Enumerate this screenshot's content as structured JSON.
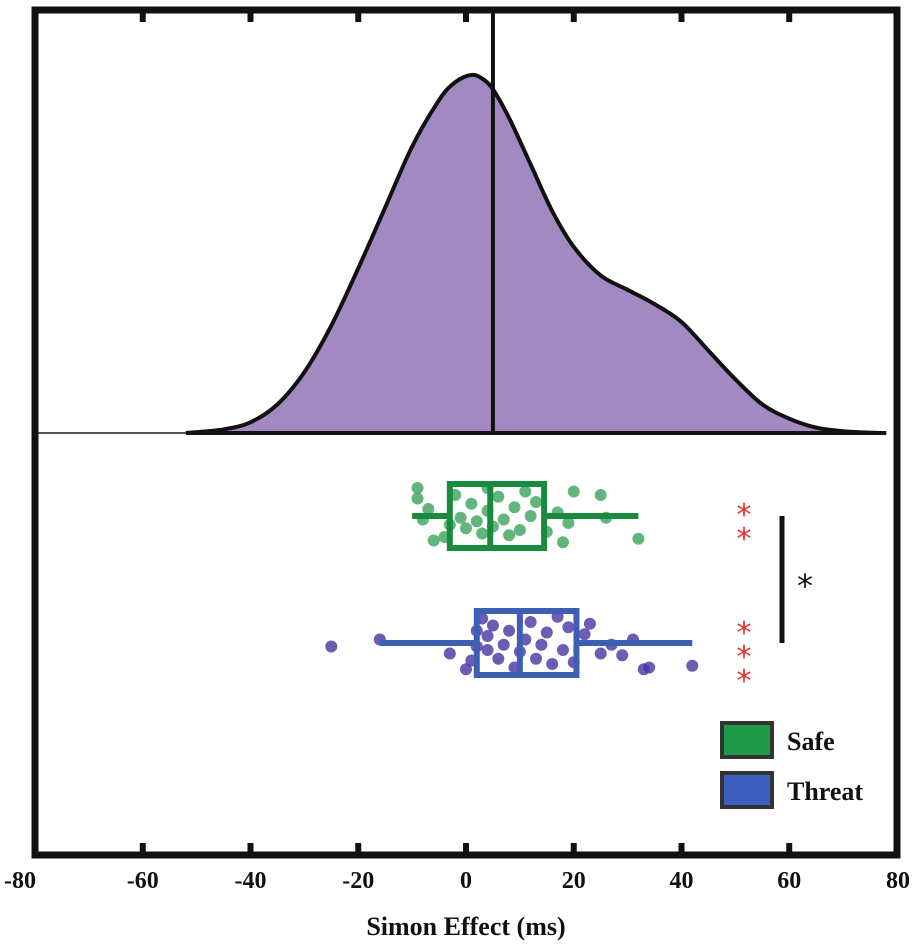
{
  "chart_data": {
    "type": "raincloud",
    "xlabel": "Simon Effect (ms)",
    "xlim": [
      -80,
      80
    ],
    "xticks": [
      -80,
      -60,
      -40,
      -20,
      0,
      20,
      40,
      60,
      80
    ],
    "tick_labels": [
      "-80",
      "-60",
      "-40",
      "-20",
      "0",
      "20",
      "40",
      "60",
      "80"
    ],
    "density": {
      "fill_color": "#a389c2",
      "line_color": "#111111",
      "x": [
        -52,
        -45,
        -40,
        -35,
        -30,
        -25,
        -20,
        -15,
        -10,
        -5,
        -2,
        1,
        3,
        5,
        8,
        12,
        16,
        20,
        25,
        30,
        35,
        40,
        45,
        50,
        55,
        60,
        65,
        70,
        75,
        78
      ],
      "y": [
        0.0,
        0.01,
        0.03,
        0.08,
        0.17,
        0.3,
        0.46,
        0.63,
        0.8,
        0.93,
        0.98,
        1.0,
        0.99,
        0.96,
        0.88,
        0.75,
        0.62,
        0.52,
        0.44,
        0.4,
        0.36,
        0.31,
        0.23,
        0.15,
        0.08,
        0.04,
        0.015,
        0.005,
        0.001,
        0.0
      ]
    },
    "vline_x": 5,
    "series": [
      {
        "name": "Safe",
        "color": "#1a8a3f",
        "point_color": "#3aa35c",
        "whisker_low": -10,
        "q1": -3,
        "median": 4.5,
        "q3": 14.5,
        "whisker_high": 32,
        "points": [
          [
            -9,
            -0.5
          ],
          [
            -8,
            0.1
          ],
          [
            -7,
            -0.2
          ],
          [
            -6,
            0.7
          ],
          [
            -4,
            0.6
          ],
          [
            -3,
            0.25
          ],
          [
            -2,
            -0.6
          ],
          [
            -1,
            0.05
          ],
          [
            0,
            0.35
          ],
          [
            1,
            -0.35
          ],
          [
            2,
            0.15
          ],
          [
            3,
            0.5
          ],
          [
            4,
            -0.15
          ],
          [
            5,
            0.3
          ],
          [
            6,
            -0.55
          ],
          [
            7,
            0.1
          ],
          [
            8,
            0.55
          ],
          [
            9,
            -0.25
          ],
          [
            10,
            0.4
          ],
          [
            11,
            -0.7
          ],
          [
            12,
            0.0
          ],
          [
            13,
            -0.4
          ],
          [
            15,
            0.45
          ],
          [
            17,
            -0.1
          ],
          [
            18,
            0.75
          ],
          [
            19,
            0.2
          ],
          [
            20,
            -0.7
          ],
          [
            25,
            -0.6
          ],
          [
            26,
            0.05
          ],
          [
            32,
            0.65
          ],
          [
            -9,
            -0.8
          ],
          [
            4,
            -0.8
          ]
        ]
      },
      {
        "name": "Threat",
        "color": "#3d5eb5",
        "point_color": "#4733a0",
        "whisker_low": -16,
        "q1": 2,
        "median": 10,
        "q3": 20.5,
        "whisker_high": 42,
        "points": [
          [
            -25,
            0.1
          ],
          [
            -16,
            -0.1
          ],
          [
            -3,
            0.3
          ],
          [
            0,
            0.75
          ],
          [
            1,
            0.5
          ],
          [
            2,
            0.1
          ],
          [
            2,
            -0.35
          ],
          [
            3,
            -0.7
          ],
          [
            4,
            0.2
          ],
          [
            4,
            -0.2
          ],
          [
            5,
            -0.5
          ],
          [
            6,
            0.45
          ],
          [
            7,
            0.05
          ],
          [
            8,
            -0.35
          ],
          [
            9,
            0.7
          ],
          [
            10,
            0.25
          ],
          [
            11,
            -0.1
          ],
          [
            12,
            -0.6
          ],
          [
            13,
            0.45
          ],
          [
            14,
            0.05
          ],
          [
            15,
            -0.3
          ],
          [
            16,
            0.6
          ],
          [
            17,
            -0.75
          ],
          [
            18,
            0.2
          ],
          [
            19,
            -0.45
          ],
          [
            20,
            0.55
          ],
          [
            22,
            -0.25
          ],
          [
            23,
            -0.55
          ],
          [
            25,
            0.3
          ],
          [
            27,
            0.05
          ],
          [
            29,
            0.35
          ],
          [
            31,
            -0.1
          ],
          [
            33,
            0.75
          ],
          [
            34,
            0.7
          ],
          [
            42,
            0.65
          ]
        ]
      }
    ],
    "significance": {
      "safe_marker": "**",
      "threat_marker": "***",
      "between_marker": "*"
    },
    "legend": {
      "position": "bottom-right",
      "entries": [
        {
          "label": "Safe",
          "color": "#1e9a4a"
        },
        {
          "label": "Threat",
          "color": "#3d5fc0"
        }
      ]
    },
    "grid": false
  }
}
